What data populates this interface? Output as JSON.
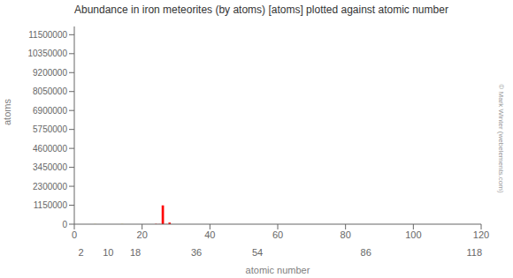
{
  "chart_data": {
    "type": "bar",
    "title": "Abundance in iron meteorites (by atoms) [atoms] plotted against atomic number",
    "xlabel": "atomic number",
    "ylabel": "atoms",
    "x": [
      6,
      14,
      24,
      25,
      26,
      27,
      28,
      29
    ],
    "values": [
      7000,
      9000,
      16000,
      9000,
      1140000,
      6000,
      95000,
      800
    ],
    "colors": [
      "#ffcc00",
      "#ffcc00",
      "#ff0000",
      "#ff0000",
      "#ff0000",
      "#ff0000",
      "#ff0000",
      "#ff0000"
    ],
    "xlim": [
      0,
      120
    ],
    "xticks": [
      0,
      20,
      40,
      60,
      80,
      100,
      120
    ],
    "x2lim": [
      0,
      120
    ],
    "x2ticks": [
      2,
      10,
      18,
      36,
      54,
      86,
      118
    ],
    "ylim": [
      0,
      12000000
    ],
    "yticks": [
      0,
      1150000,
      2300000,
      3450000,
      4600000,
      5750000,
      6900000,
      8050000,
      9200000,
      10350000,
      11500000
    ],
    "annotations": [
      "© Mark Winter (webelements.com)"
    ],
    "grid": false
  }
}
